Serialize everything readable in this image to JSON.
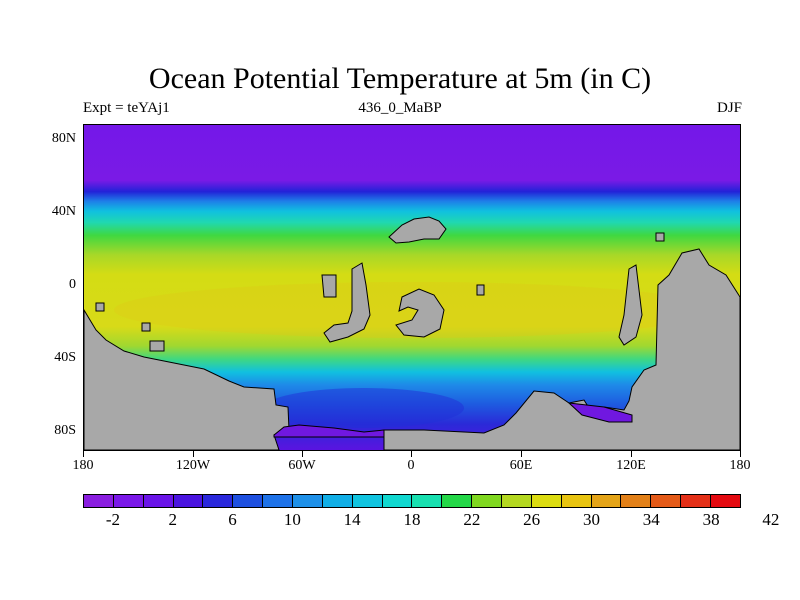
{
  "title": "Ocean Potential Temperature at 5m (in C)",
  "left_label": "Expt = teYAj1",
  "center_label": "436_0_MaBP",
  "right_label": "DJF",
  "y_axis_labels": [
    "80N",
    "40N",
    "0",
    "40S",
    "80S"
  ],
  "x_axis_labels": [
    "180",
    "120W",
    "60W",
    "0",
    "60E",
    "120E",
    "180"
  ],
  "colorbar": {
    "labels": [
      "-2",
      "2",
      "6",
      "10",
      "14",
      "18",
      "22",
      "26",
      "30",
      "34",
      "38",
      "42"
    ],
    "colors": [
      "#8a1ee0",
      "#7a18e8",
      "#6a14e8",
      "#4a14e0",
      "#2a28dc",
      "#1e50e0",
      "#1e72e8",
      "#1e90e8",
      "#10aee6",
      "#10c4e0",
      "#10d8d0",
      "#18e0b0",
      "#24d848",
      "#80d820",
      "#b4d820",
      "#dcdc10",
      "#e8c410",
      "#e4a418",
      "#e28018",
      "#e45a18",
      "#e43018",
      "#e40a10"
    ]
  },
  "land_color": "#a8a8a8"
}
